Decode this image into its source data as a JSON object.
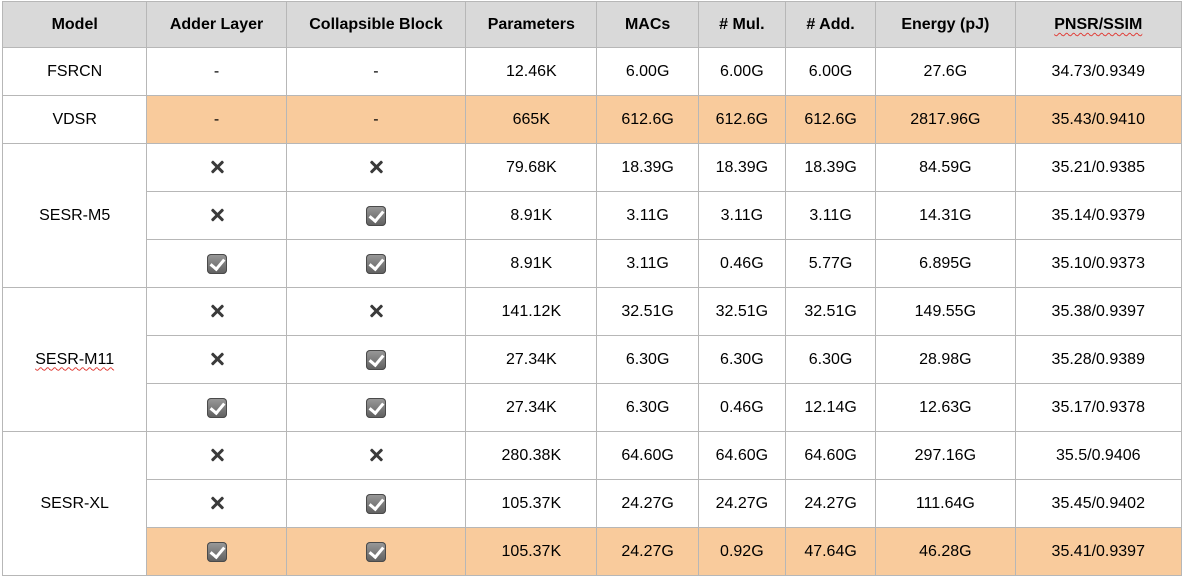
{
  "headers": [
    "Model",
    "Adder Layer",
    "Collapsible Block",
    "Parameters",
    "MACs",
    "# Mul.",
    "# Add.",
    "Energy (pJ)",
    "PNSR/SSIM"
  ],
  "highlight_color": "#f9cb9c",
  "header_color": "#d9d9d9",
  "icons": {
    "check": "checkbox-checked-icon",
    "cross": "cross-icon",
    "none": "-"
  },
  "rows": [
    {
      "model": "FSRCN",
      "adder": "-",
      "collapsible": "-",
      "params": "12.46K",
      "macs": "6.00G",
      "mul": "6.00G",
      "add": "6.00G",
      "energy": "27.6G",
      "pnsr": "34.73/0.9349"
    },
    {
      "model": "VDSR",
      "adder": "-",
      "collapsible": "-",
      "params": "665K",
      "macs": "612.6G",
      "mul": "612.6G",
      "add": "612.6G",
      "energy": "2817.96G",
      "pnsr": "35.43/0.9410",
      "highlighted": true
    },
    {
      "model": "SESR-M5",
      "adder": "cross",
      "collapsible": "cross",
      "params": "79.68K",
      "macs": "18.39G",
      "mul": "18.39G",
      "add": "18.39G",
      "energy": "84.59G",
      "pnsr": "35.21/0.9385"
    },
    {
      "model": "SESR-M5",
      "adder": "cross",
      "collapsible": "check",
      "params": "8.91K",
      "macs": "3.11G",
      "mul": "3.11G",
      "add": "3.11G",
      "energy": "14.31G",
      "pnsr": "35.14/0.9379"
    },
    {
      "model": "SESR-M5",
      "adder": "check",
      "collapsible": "check",
      "params": "8.91K",
      "macs": "3.11G",
      "mul": "0.46G",
      "add": "5.77G",
      "energy": "6.895G",
      "pnsr": "35.10/0.9373"
    },
    {
      "model": "SESR-M11",
      "adder": "cross",
      "collapsible": "cross",
      "params": "141.12K",
      "macs": "32.51G",
      "mul": "32.51G",
      "add": "32.51G",
      "energy": "149.55G",
      "pnsr": "35.38/0.9397"
    },
    {
      "model": "SESR-M11",
      "adder": "cross",
      "collapsible": "check",
      "params": "27.34K",
      "macs": "6.30G",
      "mul": "6.30G",
      "add": "6.30G",
      "energy": "28.98G",
      "pnsr": "35.28/0.9389"
    },
    {
      "model": "SESR-M11",
      "adder": "check",
      "collapsible": "check",
      "params": "27.34K",
      "macs": "6.30G",
      "mul": "0.46G",
      "add": "12.14G",
      "energy": "12.63G",
      "pnsr": "35.17/0.9378"
    },
    {
      "model": "SESR-XL",
      "adder": "cross",
      "collapsible": "cross",
      "params": "280.38K",
      "macs": "64.60G",
      "mul": "64.60G",
      "add": "64.60G",
      "energy": "297.16G",
      "pnsr": "35.5/0.9406"
    },
    {
      "model": "SESR-XL",
      "adder": "cross",
      "collapsible": "check",
      "params": "105.37K",
      "macs": "24.27G",
      "mul": "24.27G",
      "add": "24.27G",
      "energy": "111.64G",
      "pnsr": "35.45/0.9402"
    },
    {
      "model": "SESR-XL",
      "adder": "check",
      "collapsible": "check",
      "params": "105.37K",
      "macs": "24.27G",
      "mul": "0.92G",
      "add": "47.64G",
      "energy": "46.28G",
      "pnsr": "35.41/0.9397",
      "highlighted": true
    }
  ]
}
